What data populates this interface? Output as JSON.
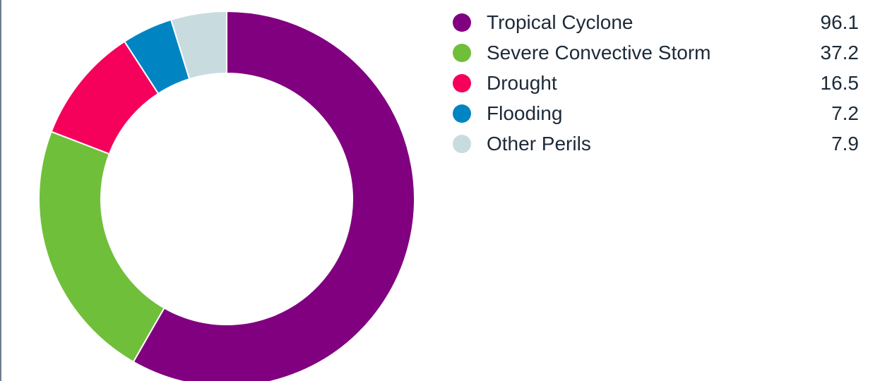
{
  "chart_data": {
    "type": "pie",
    "donut": true,
    "title": "",
    "legend_position": "top-right",
    "categories": [
      "Tropical Cyclone",
      "Severe Convective Storm",
      "Drought",
      "Flooding",
      "Other Perils"
    ],
    "values": [
      96.1,
      37.2,
      16.5,
      7.2,
      7.9
    ],
    "value_labels": [
      "96.1",
      "37.2",
      "16.5",
      "7.2",
      "7.9"
    ],
    "colors": [
      "#800080",
      "#70bf3a",
      "#f5005a",
      "#0085c2",
      "#c8dce0"
    ]
  }
}
